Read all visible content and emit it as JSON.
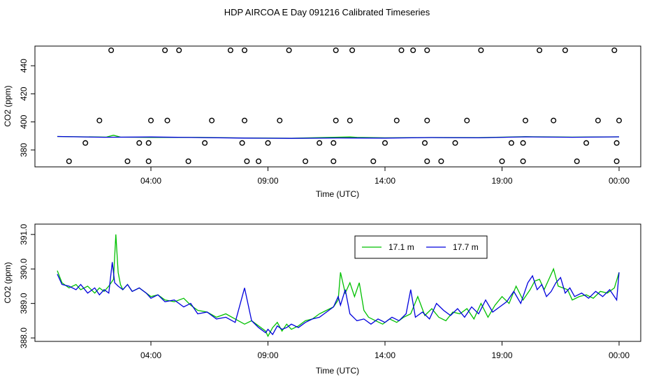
{
  "title": "HDP AIRCOA E  Day 091216  Calibrated Timeseries",
  "colors": {
    "green": "#00c000",
    "blue": "#0000dd",
    "axis": "#000000"
  },
  "chart_data": [
    {
      "type": "scatter",
      "xlabel": "Time (UTC)",
      "ylabel": "CO2 (ppm)",
      "xlim": [
        0,
        25
      ],
      "ylim": [
        368,
        454
      ],
      "x_ticks": [
        4,
        9,
        14,
        19,
        24
      ],
      "x_tick_labels": [
        "04:00",
        "09:00",
        "14:00",
        "19:00",
        "00:00"
      ],
      "y_ticks": [
        380,
        400,
        420,
        440
      ],
      "y_tick_labels": [
        "380",
        "400",
        "420",
        "440"
      ],
      "calibration_points": {
        "x": [
          0.5,
          1.2,
          1.8,
          2.3,
          3.0,
          3.5,
          3.9,
          3.9,
          4.0,
          4.6,
          4.7,
          5.2,
          5.6,
          6.3,
          6.6,
          7.4,
          7.9,
          8.0,
          8.0,
          8.1,
          8.6,
          9.0,
          9.5,
          9.9,
          10.6,
          11.2,
          11.8,
          11.8,
          11.9,
          11.9,
          12.5,
          12.6,
          13.5,
          14.0,
          14.5,
          14.7,
          15.2,
          15.7,
          15.8,
          15.8,
          15.8,
          16.4,
          17.0,
          17.5,
          18.1,
          19.0,
          19.4,
          19.9,
          19.9,
          20.0,
          20.6,
          21.2,
          21.7,
          22.2,
          22.6,
          23.1,
          23.8,
          23.9,
          23.9,
          24.0
        ],
        "y": [
          372,
          385,
          401,
          451,
          372,
          385,
          372,
          385,
          401,
          451,
          401,
          451,
          372,
          385,
          401,
          451,
          385,
          401,
          451,
          372,
          372,
          385,
          401,
          451,
          372,
          385,
          372,
          385,
          401,
          451,
          401,
          451,
          372,
          385,
          401,
          451,
          451,
          385,
          401,
          451,
          372,
          372,
          385,
          401,
          451,
          372,
          385,
          372,
          385,
          401,
          451,
          401,
          451,
          372,
          385,
          401,
          451,
          372,
          385,
          401
        ]
      },
      "series": [
        {
          "name": "",
          "color": "#00c000",
          "x": [
            0,
            2.1,
            2.4,
            2.7,
            4,
            6,
            8,
            10,
            12.5,
            12.8,
            14,
            16,
            18,
            20,
            22,
            24
          ],
          "y": [
            389.6,
            389.2,
            390.5,
            389.2,
            389.0,
            389.0,
            388.6,
            388.4,
            389.3,
            389.0,
            388.7,
            388.9,
            388.8,
            389.5,
            389.2,
            389.4
          ]
        },
        {
          "name": "",
          "color": "#0000dd",
          "x": [
            0,
            2,
            4,
            6,
            8,
            10,
            12,
            14,
            16,
            18,
            20,
            22,
            24
          ],
          "y": [
            389.6,
            389.1,
            389.3,
            388.9,
            388.5,
            388.3,
            388.6,
            388.5,
            388.9,
            388.7,
            389.4,
            389.1,
            389.4
          ]
        }
      ]
    },
    {
      "type": "line",
      "xlabel": "Time (UTC)",
      "ylabel": "CO2 (ppm)",
      "xlim": [
        0,
        24.5
      ],
      "ylim": [
        387.9,
        391.3
      ],
      "x_ticks": [
        4,
        9,
        14,
        19,
        24
      ],
      "x_tick_labels": [
        "04:00",
        "09:00",
        "14:00",
        "19:00",
        "00:00"
      ],
      "y_ticks": [
        388.0,
        389.0,
        390.0,
        391.0
      ],
      "y_tick_labels": [
        "388.0",
        "389.0",
        "390.0",
        "391.0"
      ],
      "legend": "top-center",
      "series": [
        {
          "name": "17.1 m",
          "color": "#00c000",
          "x": [
            0.0,
            0.2,
            0.5,
            0.8,
            1.0,
            1.3,
            1.6,
            1.8,
            2.0,
            2.2,
            2.4,
            2.5,
            2.6,
            2.7,
            2.8,
            3.0,
            3.2,
            3.5,
            3.8,
            4.0,
            4.3,
            4.6,
            5.0,
            5.4,
            5.7,
            6.0,
            6.4,
            6.8,
            7.2,
            7.6,
            8.0,
            8.3,
            8.6,
            8.9,
            9.0,
            9.2,
            9.4,
            9.6,
            9.8,
            10.0,
            10.3,
            10.6,
            10.9,
            11.2,
            11.5,
            11.8,
            12.0,
            12.1,
            12.2,
            12.3,
            12.5,
            12.7,
            12.9,
            13.1,
            13.3,
            13.6,
            13.9,
            14.2,
            14.5,
            14.8,
            15.1,
            15.4,
            15.7,
            16.0,
            16.3,
            16.6,
            16.9,
            17.2,
            17.5,
            17.8,
            18.1,
            18.4,
            18.7,
            19.0,
            19.3,
            19.6,
            19.9,
            20.2,
            20.4,
            20.6,
            20.8,
            21.0,
            21.2,
            21.4,
            21.6,
            21.8,
            22.0,
            22.3,
            22.6,
            22.9,
            23.2,
            23.5,
            23.8,
            24.0
          ],
          "y": [
            389.95,
            389.6,
            389.45,
            389.55,
            389.4,
            389.5,
            389.3,
            389.45,
            389.35,
            389.5,
            389.7,
            391.0,
            389.9,
            389.55,
            389.4,
            389.55,
            389.35,
            389.45,
            389.3,
            389.2,
            389.25,
            389.1,
            389.05,
            389.15,
            388.95,
            388.8,
            388.75,
            388.6,
            388.7,
            388.55,
            388.4,
            388.5,
            388.35,
            388.2,
            388.05,
            388.3,
            388.45,
            388.2,
            388.4,
            388.25,
            388.35,
            388.5,
            388.55,
            388.7,
            388.8,
            388.9,
            389.1,
            389.9,
            389.6,
            389.3,
            389.6,
            389.2,
            389.6,
            388.8,
            388.6,
            388.5,
            388.4,
            388.55,
            388.45,
            388.6,
            388.7,
            389.2,
            388.65,
            388.85,
            388.6,
            388.5,
            388.75,
            388.7,
            388.85,
            388.55,
            389.0,
            388.6,
            388.95,
            389.2,
            389.0,
            389.5,
            389.1,
            389.4,
            389.65,
            389.7,
            389.4,
            389.7,
            390.0,
            389.5,
            389.45,
            389.4,
            389.1,
            389.2,
            389.25,
            389.15,
            389.35,
            389.3,
            389.45,
            389.9
          ]
        },
        {
          "name": "17.7 m",
          "color": "#0000dd",
          "x": [
            0.0,
            0.2,
            0.5,
            0.8,
            1.0,
            1.3,
            1.6,
            1.8,
            2.0,
            2.2,
            2.35,
            2.45,
            2.6,
            2.8,
            3.0,
            3.2,
            3.5,
            3.8,
            4.0,
            4.3,
            4.6,
            5.0,
            5.4,
            5.7,
            6.0,
            6.4,
            6.8,
            7.2,
            7.6,
            8.0,
            8.3,
            8.6,
            8.9,
            9.0,
            9.2,
            9.4,
            9.6,
            9.8,
            10.0,
            10.3,
            10.6,
            10.9,
            11.2,
            11.5,
            11.8,
            12.0,
            12.1,
            12.3,
            12.5,
            12.8,
            13.1,
            13.4,
            13.7,
            14.0,
            14.3,
            14.6,
            14.9,
            15.1,
            15.3,
            15.6,
            15.9,
            16.2,
            16.5,
            16.8,
            17.1,
            17.4,
            17.7,
            18.0,
            18.3,
            18.6,
            18.9,
            19.2,
            19.5,
            19.8,
            20.1,
            20.3,
            20.5,
            20.7,
            20.9,
            21.1,
            21.3,
            21.5,
            21.7,
            21.9,
            22.1,
            22.4,
            22.7,
            23.0,
            23.3,
            23.6,
            23.9,
            24.0
          ],
          "y": [
            389.85,
            389.55,
            389.5,
            389.4,
            389.55,
            389.3,
            389.45,
            389.25,
            389.4,
            389.3,
            390.2,
            389.6,
            389.5,
            389.4,
            389.55,
            389.35,
            389.45,
            389.3,
            389.15,
            389.25,
            389.05,
            389.1,
            388.9,
            389.0,
            388.7,
            388.75,
            388.55,
            388.6,
            388.45,
            389.45,
            388.5,
            388.3,
            388.15,
            388.25,
            388.1,
            388.35,
            388.25,
            388.3,
            388.4,
            388.3,
            388.45,
            388.55,
            388.6,
            388.75,
            388.9,
            389.2,
            388.95,
            389.4,
            388.7,
            388.5,
            388.55,
            388.4,
            388.55,
            388.45,
            388.6,
            388.5,
            388.7,
            389.4,
            388.6,
            388.75,
            388.55,
            389.0,
            388.8,
            388.65,
            388.85,
            388.6,
            388.9,
            388.7,
            389.1,
            388.75,
            388.9,
            389.05,
            389.35,
            389.0,
            389.6,
            389.8,
            389.4,
            389.55,
            389.2,
            389.35,
            389.6,
            389.75,
            389.3,
            389.45,
            389.2,
            389.3,
            389.15,
            389.35,
            389.2,
            389.4,
            389.1,
            389.9
          ]
        }
      ]
    }
  ]
}
